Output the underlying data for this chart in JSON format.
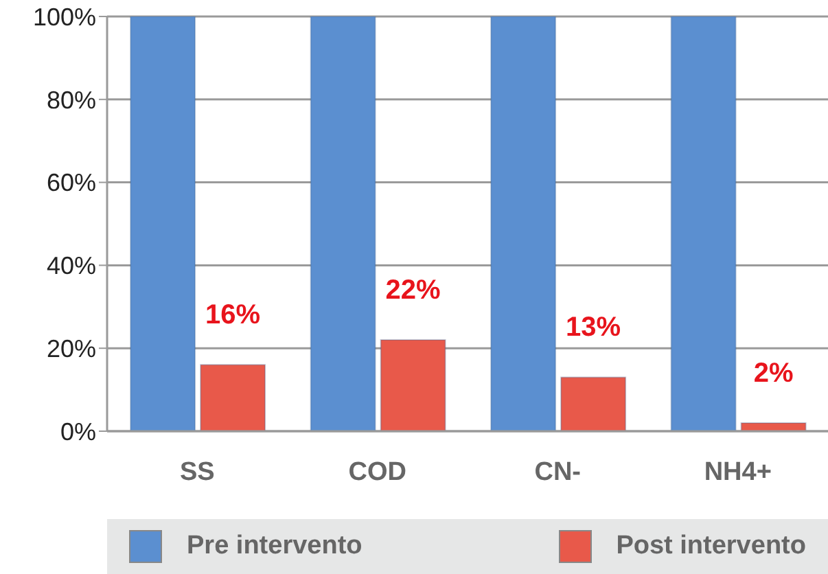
{
  "chart_data": {
    "type": "bar",
    "categories": [
      "SS",
      "COD",
      "CN-",
      "NH4+"
    ],
    "series": [
      {
        "name": "Pre intervento",
        "color": "#5b8fd0",
        "values": [
          100,
          100,
          100,
          100
        ]
      },
      {
        "name": "Post intervento",
        "color": "#e8594a",
        "values": [
          16,
          22,
          13,
          2
        ],
        "value_labels": [
          "16%",
          "22%",
          "13%",
          "2%"
        ]
      }
    ],
    "ylim": [
      0,
      100
    ],
    "yticks": [
      {
        "value": 0,
        "label": "0%"
      },
      {
        "value": 20,
        "label": "20%"
      },
      {
        "value": 40,
        "label": "40%"
      },
      {
        "value": 60,
        "label": "60%"
      },
      {
        "value": 80,
        "label": "80%"
      },
      {
        "value": 100,
        "label": "100%"
      }
    ],
    "grid": "y",
    "legend": "bottom"
  }
}
